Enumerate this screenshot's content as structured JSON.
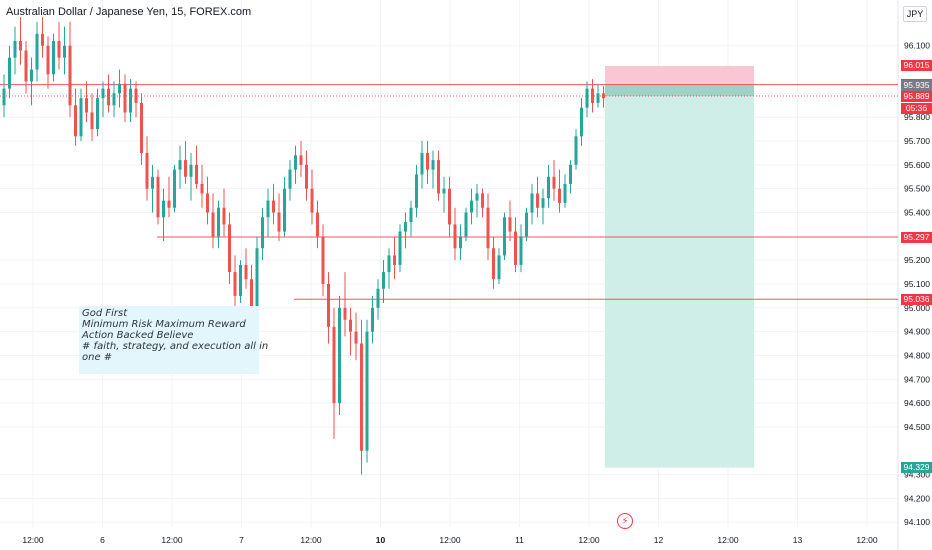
{
  "header": {
    "symbol_title": "Australian Dollar / Japanese Yen, 15, FOREX.com",
    "currency": "JPY"
  },
  "annotation": {
    "lines": [
      "God First",
      "Minimum Risk Maximum Reward",
      "Action Backed Believe",
      "",
      "# faith, strategy, and execution all in",
      "one #"
    ]
  },
  "colors": {
    "up": "#26a69a",
    "down": "#ef5350",
    "level_line": "#f23645",
    "stop_zone": "#f9c6d3",
    "target_zone": "#cfeee8",
    "entry_zone": "#9fd2c6",
    "grid": "#f0f3fa"
  },
  "chart_data": {
    "type": "candlestick",
    "title": "Australian Dollar / Japanese Yen, 15, FOREX.com",
    "x_tick_labels": [
      "12:00",
      "6",
      "12:00",
      "7",
      "12:00",
      "10",
      "12:00",
      "11",
      "12:00",
      "12",
      "12:00",
      "13",
      "12:00"
    ],
    "x_tick_bold": [
      false,
      false,
      false,
      false,
      false,
      true,
      false,
      false,
      false,
      false,
      false,
      false,
      false
    ],
    "y_tick_labels": [
      "96.100",
      "95.900",
      "95.800",
      "95.700",
      "95.600",
      "95.500",
      "95.400",
      "95.200",
      "95.100",
      "95.000",
      "94.900",
      "94.800",
      "94.700",
      "94.600",
      "94.500",
      "94.300",
      "94.200",
      "94.100"
    ],
    "ylim": [
      94.08,
      96.25
    ],
    "price_tags": [
      {
        "label": "96.015",
        "value": 96.015,
        "color": "#f23645"
      },
      {
        "label": "95.937",
        "value": 95.937,
        "color": "#f23645"
      },
      {
        "label": "95.935",
        "value": 95.935,
        "color": "#787b86"
      },
      {
        "label": "95.889",
        "value": 95.889,
        "color": "#f23645"
      },
      {
        "label": "05:36",
        "value": 95.835,
        "color": "#f23645"
      },
      {
        "label": "95.297",
        "value": 95.297,
        "color": "#f23645"
      },
      {
        "label": "95.036",
        "value": 95.036,
        "color": "#f23645"
      },
      {
        "label": "94.329",
        "value": 94.329,
        "color": "#26a69a"
      }
    ],
    "horizontal_levels": [
      {
        "value": 95.937,
        "style": "solid"
      },
      {
        "value": 95.889,
        "style": "dotted"
      },
      {
        "value": 95.297,
        "style": "solid",
        "start_index": 37
      },
      {
        "value": 95.036,
        "style": "solid",
        "start_index": 72
      }
    ],
    "position": {
      "type": "short",
      "entry": 95.935,
      "stop": 96.015,
      "target": 94.329,
      "current": 95.889
    },
    "ohlc": [
      [
        95.85,
        95.98,
        95.8,
        95.92
      ],
      [
        95.92,
        96.1,
        95.88,
        96.05
      ],
      [
        96.05,
        96.18,
        95.98,
        96.12
      ],
      [
        96.12,
        96.22,
        96.02,
        96.08
      ],
      [
        96.08,
        96.12,
        95.9,
        95.95
      ],
      [
        95.95,
        96.05,
        95.85,
        96.0
      ],
      [
        96.0,
        96.2,
        95.95,
        96.15
      ],
      [
        96.15,
        96.22,
        96.05,
        96.1
      ],
      [
        96.1,
        96.14,
        95.92,
        95.98
      ],
      [
        95.98,
        96.15,
        95.95,
        96.12
      ],
      [
        96.12,
        96.2,
        96.0,
        96.05
      ],
      [
        96.05,
        96.18,
        95.98,
        96.1
      ],
      [
        96.1,
        96.2,
        95.8,
        95.85
      ],
      [
        95.85,
        95.92,
        95.68,
        95.72
      ],
      [
        95.72,
        95.92,
        95.7,
        95.88
      ],
      [
        95.88,
        95.95,
        95.78,
        95.82
      ],
      [
        95.82,
        95.9,
        95.7,
        95.75
      ],
      [
        95.75,
        95.92,
        95.72,
        95.88
      ],
      [
        95.88,
        95.95,
        95.8,
        95.92
      ],
      [
        95.92,
        95.98,
        95.82,
        95.85
      ],
      [
        95.85,
        95.95,
        95.8,
        95.9
      ],
      [
        95.9,
        96.0,
        95.84,
        95.94
      ],
      [
        95.94,
        95.98,
        95.78,
        95.82
      ],
      [
        95.82,
        95.96,
        95.78,
        95.92
      ],
      [
        95.92,
        95.95,
        95.8,
        95.86
      ],
      [
        95.86,
        95.9,
        95.6,
        95.65
      ],
      [
        95.65,
        95.72,
        95.45,
        95.5
      ],
      [
        95.5,
        95.6,
        95.4,
        95.55
      ],
      [
        95.55,
        95.58,
        95.35,
        95.38
      ],
      [
        95.38,
        95.5,
        95.28,
        95.45
      ],
      [
        95.45,
        95.55,
        95.38,
        95.42
      ],
      [
        95.42,
        95.6,
        95.4,
        95.58
      ],
      [
        95.58,
        95.68,
        95.5,
        95.62
      ],
      [
        95.62,
        95.7,
        95.52,
        95.55
      ],
      [
        95.55,
        95.65,
        95.45,
        95.6
      ],
      [
        95.6,
        95.68,
        95.5,
        95.52
      ],
      [
        95.52,
        95.6,
        95.42,
        95.48
      ],
      [
        95.48,
        95.55,
        95.35,
        95.4
      ],
      [
        95.4,
        95.48,
        95.25,
        95.3
      ],
      [
        95.3,
        95.45,
        95.25,
        95.42
      ],
      [
        95.42,
        95.5,
        95.3,
        95.35
      ],
      [
        95.35,
        95.4,
        95.1,
        95.15
      ],
      [
        95.15,
        95.22,
        95.0,
        95.05
      ],
      [
        95.05,
        95.2,
        95.02,
        95.18
      ],
      [
        95.18,
        95.25,
        95.08,
        95.12
      ],
      [
        95.12,
        95.18,
        94.88,
        94.95
      ],
      [
        94.95,
        95.3,
        94.92,
        95.25
      ],
      [
        95.25,
        95.42,
        95.2,
        95.38
      ],
      [
        95.38,
        95.5,
        95.3,
        95.45
      ],
      [
        95.45,
        95.52,
        95.35,
        95.4
      ],
      [
        95.4,
        95.48,
        95.28,
        95.32
      ],
      [
        95.32,
        95.55,
        95.3,
        95.5
      ],
      [
        95.5,
        95.62,
        95.45,
        95.58
      ],
      [
        95.58,
        95.68,
        95.52,
        95.64
      ],
      [
        95.64,
        95.7,
        95.55,
        95.6
      ],
      [
        95.6,
        95.66,
        95.45,
        95.5
      ],
      [
        95.5,
        95.58,
        95.35,
        95.4
      ],
      [
        95.4,
        95.45,
        95.25,
        95.3
      ],
      [
        95.3,
        95.35,
        95.05,
        95.1
      ],
      [
        95.1,
        95.15,
        94.85,
        94.92
      ],
      [
        94.92,
        95.0,
        94.45,
        94.6
      ],
      [
        94.6,
        95.05,
        94.55,
        95.0
      ],
      [
        95.0,
        95.15,
        94.88,
        94.95
      ],
      [
        94.95,
        95.0,
        94.8,
        94.9
      ],
      [
        94.9,
        94.98,
        94.78,
        94.85
      ],
      [
        94.85,
        94.95,
        94.3,
        94.4
      ],
      [
        94.4,
        94.95,
        94.35,
        94.9
      ],
      [
        94.9,
        95.05,
        94.85,
        95.0
      ],
      [
        95.0,
        95.12,
        94.95,
        95.08
      ],
      [
        95.08,
        95.2,
        95.02,
        95.15
      ],
      [
        95.15,
        95.25,
        95.08,
        95.22
      ],
      [
        95.22,
        95.3,
        95.12,
        95.18
      ],
      [
        95.18,
        95.35,
        95.15,
        95.32
      ],
      [
        95.32,
        95.4,
        95.25,
        95.36
      ],
      [
        95.36,
        95.45,
        95.3,
        95.42
      ],
      [
        95.42,
        95.6,
        95.38,
        95.56
      ],
      [
        95.56,
        95.7,
        95.5,
        95.65
      ],
      [
        95.65,
        95.7,
        95.52,
        95.58
      ],
      [
        95.58,
        95.66,
        95.5,
        95.62
      ],
      [
        95.62,
        95.66,
        95.45,
        95.48
      ],
      [
        95.48,
        95.55,
        95.4,
        95.5
      ],
      [
        95.5,
        95.55,
        95.3,
        95.35
      ],
      [
        95.35,
        95.42,
        95.2,
        95.25
      ],
      [
        95.25,
        95.35,
        95.2,
        95.3
      ],
      [
        95.3,
        95.42,
        95.28,
        95.4
      ],
      [
        95.4,
        95.5,
        95.35,
        95.45
      ],
      [
        95.45,
        95.52,
        95.38,
        95.48
      ],
      [
        95.48,
        95.5,
        95.38,
        95.42
      ],
      [
        95.42,
        95.48,
        95.2,
        95.25
      ],
      [
        95.25,
        95.3,
        95.08,
        95.12
      ],
      [
        95.12,
        95.25,
        95.1,
        95.22
      ],
      [
        95.22,
        95.4,
        95.2,
        95.38
      ],
      [
        95.38,
        95.45,
        95.28,
        95.32
      ],
      [
        95.32,
        95.38,
        95.15,
        95.18
      ],
      [
        95.18,
        95.35,
        95.15,
        95.3
      ],
      [
        95.3,
        95.42,
        95.28,
        95.4
      ],
      [
        95.4,
        95.52,
        95.35,
        95.48
      ],
      [
        95.48,
        95.55,
        95.38,
        95.42
      ],
      [
        95.42,
        95.5,
        95.35,
        95.46
      ],
      [
        95.46,
        95.6,
        95.42,
        95.55
      ],
      [
        95.55,
        95.62,
        95.45,
        95.5
      ],
      [
        95.5,
        95.58,
        95.4,
        95.44
      ],
      [
        95.44,
        95.56,
        95.42,
        95.52
      ],
      [
        95.52,
        95.62,
        95.48,
        95.6
      ],
      [
        95.6,
        95.75,
        95.58,
        95.72
      ],
      [
        95.72,
        95.88,
        95.68,
        95.84
      ],
      [
        95.84,
        95.95,
        95.8,
        95.92
      ],
      [
        95.92,
        95.96,
        95.82,
        95.86
      ],
      [
        95.86,
        95.94,
        95.84,
        95.9
      ],
      [
        95.9,
        95.93,
        95.84,
        95.88
      ]
    ]
  }
}
